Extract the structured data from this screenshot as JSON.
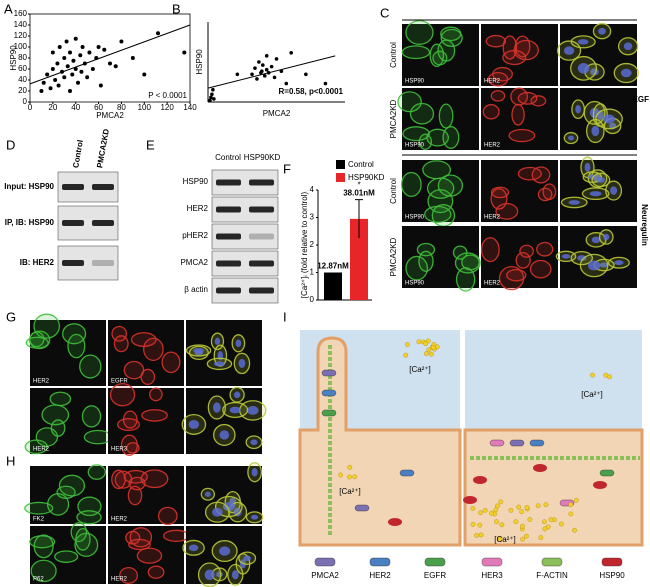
{
  "chart_data": [
    {
      "type": "scatter",
      "xlabel": "PMCA2",
      "ylabel": "HSP90",
      "annotation": "P < 0.0001",
      "color": "#000000",
      "x": [
        10,
        12,
        15,
        18,
        20,
        20,
        22,
        24,
        25,
        26,
        28,
        30,
        30,
        32,
        33,
        35,
        35,
        37,
        38,
        40,
        40,
        42,
        44,
        45,
        46,
        48,
        50,
        52,
        55,
        58,
        60,
        62,
        65,
        70,
        75,
        80,
        90,
        100,
        135,
        112
      ],
      "y": [
        20,
        35,
        50,
        25,
        60,
        90,
        40,
        70,
        30,
        100,
        55,
        80,
        45,
        110,
        65,
        20,
        90,
        50,
        75,
        60,
        115,
        35,
        85,
        55,
        100,
        70,
        45,
        90,
        60,
        80,
        100,
        30,
        95,
        70,
        65,
        110,
        80,
        50,
        90,
        125
      ],
      "trendline": {
        "x": [
          0,
          140
        ],
        "y": [
          33,
          140
        ]
      },
      "xlim": [
        0,
        140
      ],
      "xticks": [
        0,
        20,
        40,
        60,
        80,
        100,
        120,
        140
      ],
      "ylim": [
        0,
        160
      ],
      "yticks": [
        0,
        20,
        40,
        60,
        80,
        100,
        120,
        140,
        160
      ]
    },
    {
      "type": "scatter",
      "xlabel": "PMCA2",
      "ylabel": "HSP90",
      "annotation": "R=0.58, p<0.0001",
      "color": "#000000",
      "x": [
        2,
        3,
        4,
        5,
        6,
        45,
        48,
        50,
        52,
        54,
        55,
        56,
        58,
        60,
        60,
        62,
        65,
        68,
        70,
        75,
        80,
        100,
        120,
        85,
        30
      ],
      "y": [
        5,
        15,
        25,
        40,
        10,
        90,
        110,
        75,
        130,
        95,
        100,
        120,
        85,
        105,
        150,
        95,
        115,
        80,
        140,
        100,
        60,
        90,
        60,
        160,
        90
      ],
      "trendline": {
        "x": [
          0,
          130
        ],
        "y": [
          45,
          150
        ]
      },
      "xlim": [
        0,
        140
      ],
      "ylim": [
        0,
        260
      ]
    },
    {
      "type": "bar",
      "ylabel": "[Ca²⁺]ᵢ (fold relative to control)",
      "annotation": "*",
      "annotations": [
        "12.87nM",
        "38.01nM"
      ],
      "series": [
        {
          "name": "Control",
          "color": "#000000",
          "values": [
            1
          ],
          "errors": [
            0
          ]
        },
        {
          "name": "HSP90KD",
          "color": "#e8262a",
          "values": [
            2.95
          ],
          "errors": [
            0.7
          ]
        }
      ],
      "ylim": [
        0,
        4
      ],
      "yticks": [
        0,
        1,
        2,
        3,
        4
      ]
    }
  ],
  "panel_labels": [
    "A",
    "B",
    "C",
    "D",
    "E",
    "F",
    "G",
    "H",
    "I"
  ],
  "C": {
    "row_labels": [
      "Control",
      "PMCA2KD",
      "Control",
      "PMCA2KD"
    ],
    "image_labels": [
      "HSP90",
      "HER2",
      "HSP90",
      "HER2",
      "HSP90",
      "HER2",
      "HSP90",
      "HER2"
    ],
    "treatments": [
      "EGF",
      "Neuregulin"
    ]
  },
  "D": {
    "columns": [
      "Control",
      "PMCA2KD"
    ],
    "rows": [
      "Input: HSP90",
      "IP, IB: HSP90",
      "IB: HER2"
    ]
  },
  "E": {
    "columns": [
      "Control",
      "HSP90KD"
    ],
    "rows": [
      "HSP90",
      "HER2",
      "pHER2",
      "PMCA2",
      "β actin"
    ]
  },
  "G": {
    "image_labels": [
      "HER2",
      "EGFR",
      "HER2",
      "HER3"
    ]
  },
  "H": {
    "image_labels": [
      "FK2",
      "HER2",
      "P62",
      "HER2"
    ]
  },
  "I": {
    "calcium_labels": [
      "[Ca²⁺]",
      "[Ca²⁺]",
      "[Ca²⁺]",
      "[Ca²⁺]"
    ],
    "legend": [
      "PMCA2",
      "HER2",
      "EGFR",
      "HER3",
      "F-ACTIN",
      "HSP90"
    ]
  }
}
